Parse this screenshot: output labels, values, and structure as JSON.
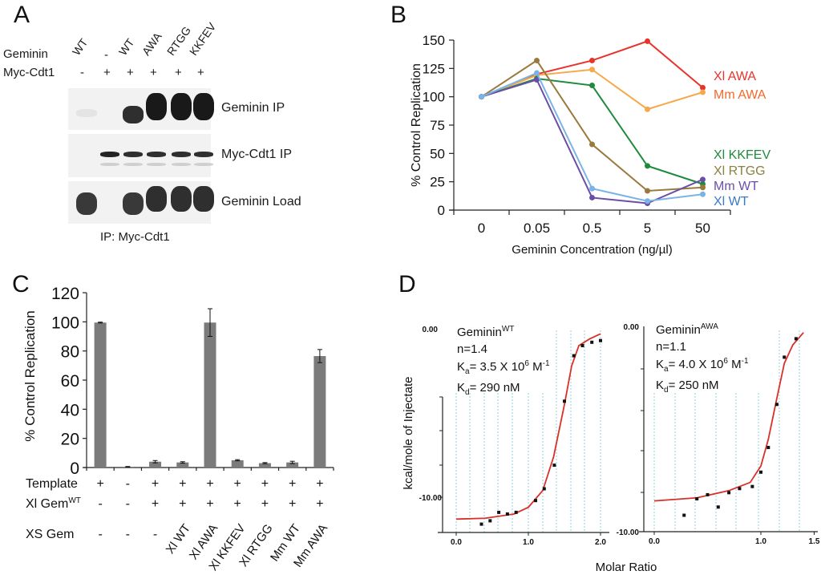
{
  "panels": {
    "A": {
      "letter": "A",
      "row_labels": {
        "geminin": "Geminin",
        "myc": "Myc-Cdt1"
      },
      "lanes": [
        {
          "geminin": "WT",
          "myc": "-"
        },
        {
          "geminin": "-",
          "myc": "+"
        },
        {
          "geminin": "WT",
          "myc": "+"
        },
        {
          "geminin": "AWA",
          "myc": "+"
        },
        {
          "geminin": "RTGG",
          "myc": "+"
        },
        {
          "geminin": "KKFEV",
          "myc": "+"
        }
      ],
      "blots": [
        {
          "label": "Geminin IP",
          "band_intensity": [
            0.06,
            0.0,
            0.9,
            1.0,
            1.0,
            1.0
          ]
        },
        {
          "label": "Myc-Cdt1 IP",
          "band_intensity": [
            0.0,
            0.95,
            0.9,
            0.9,
            0.9,
            0.9
          ]
        },
        {
          "label": "Geminin Load",
          "band_intensity": [
            0.85,
            0.0,
            0.85,
            0.9,
            0.9,
            0.9
          ]
        }
      ],
      "footer": "IP:  Myc-Cdt1"
    },
    "B": {
      "letter": "B"
    },
    "C": {
      "letter": "C"
    },
    "D": {
      "letter": "D"
    }
  },
  "chart_data": [
    {
      "id": "B",
      "type": "line",
      "title": "",
      "xlabel": "Geminin Concentration (ng/µl)",
      "ylabel": "% Control Replication",
      "categories": [
        "0",
        "0.05",
        "0.5",
        "5",
        "50"
      ],
      "yticks": [
        0,
        25,
        50,
        75,
        100,
        125,
        150
      ],
      "ylim": [
        0,
        150
      ],
      "grid": false,
      "legend_position": "right (inline labels)",
      "series": [
        {
          "name": "Xl AWA",
          "color": "#e8332a",
          "values": [
            100,
            120,
            132,
            149,
            108
          ]
        },
        {
          "name": "Mm AWA",
          "color": "#f7a84a",
          "label_color": "#f26a2a",
          "values": [
            100,
            119,
            124,
            89,
            104
          ]
        },
        {
          "name": "Xl KKFEV",
          "color": "#1f8a3c",
          "values": [
            100,
            116,
            110,
            39,
            23
          ]
        },
        {
          "name": "Xl RTGG",
          "color": "#9a7a3c",
          "label_color": "#8a8040",
          "values": [
            100,
            132,
            58,
            17,
            20
          ]
        },
        {
          "name": "Mm WT",
          "color": "#6a4fa8",
          "values": [
            100,
            115,
            11,
            6,
            27
          ]
        },
        {
          "name": "Xl WT",
          "color": "#7ab4e6",
          "label_color": "#3a78c8",
          "values": [
            100,
            121,
            19,
            8,
            14
          ]
        }
      ]
    },
    {
      "id": "C",
      "type": "bar",
      "title": "",
      "ylabel": "% Control Replication",
      "yticks": [
        0,
        20,
        40,
        60,
        80,
        100,
        120
      ],
      "ylim": [
        0,
        120
      ],
      "bar_color": "#7b7b7b",
      "values": [
        99.5,
        0.5,
        4,
        3.5,
        99.5,
        5,
        3,
        3.5,
        76.5
      ],
      "errors": [
        0.3,
        0.2,
        0.8,
        0.5,
        9.5,
        0.4,
        0.4,
        0.8,
        4.5
      ],
      "condition_rows": [
        {
          "label": "Template",
          "sup": "",
          "values": [
            "+",
            "-",
            "+",
            "+",
            "+",
            "+",
            "+",
            "+",
            "+"
          ]
        },
        {
          "label": "Xl Gem",
          "sup": "WT",
          "values": [
            "-",
            "-",
            "+",
            "+",
            "+",
            "+",
            "+",
            "+",
            "+"
          ]
        },
        {
          "label": "XS Gem",
          "sup": "",
          "values": [
            "-",
            "-",
            "-",
            "Xl WT",
            "Xl AWA",
            "Xl KKFEV",
            "Xl RTGG",
            "Mm WT",
            "Mm AWA"
          ]
        }
      ]
    },
    {
      "id": "D-left",
      "type": "scatter",
      "xlabel": "Molar Ratio",
      "ylabel": "kcal/mole of Injectate",
      "xticks": [
        "0.0",
        "1.0",
        "2.0"
      ],
      "xlim": [
        0,
        2.1
      ],
      "yticks": [
        "0.00",
        "-10.00"
      ],
      "ylim": [
        -12,
        0
      ],
      "fit_color": "#d9302a",
      "annotation": {
        "name": "Geminin",
        "sup": "WT",
        "n": "n=1.4",
        "ka": "3.5 X 10",
        "ka_exp": "6",
        "ka_unit": " M",
        "ka_unit_exp": "-1",
        "kd": "290 nM"
      },
      "points": [
        [
          0.35,
          -11.6
        ],
        [
          0.47,
          -11.4
        ],
        [
          0.59,
          -10.9
        ],
        [
          0.71,
          -11.0
        ],
        [
          0.83,
          -10.9
        ],
        [
          1.1,
          -10.2
        ],
        [
          1.22,
          -9.5
        ],
        [
          1.36,
          -8.1
        ],
        [
          1.5,
          -4.3
        ],
        [
          1.63,
          -1.6
        ],
        [
          1.75,
          -1.0
        ],
        [
          1.88,
          -0.8
        ],
        [
          2.0,
          -0.7
        ]
      ],
      "fit": [
        [
          0,
          -11.3
        ],
        [
          0.4,
          -11.25
        ],
        [
          0.8,
          -11.0
        ],
        [
          1.0,
          -10.6
        ],
        [
          1.2,
          -9.6
        ],
        [
          1.35,
          -7.6
        ],
        [
          1.5,
          -4.5
        ],
        [
          1.6,
          -2.2
        ],
        [
          1.7,
          -1.0
        ],
        [
          1.85,
          -0.6
        ],
        [
          2.0,
          -0.3
        ]
      ]
    },
    {
      "id": "D-right",
      "type": "scatter",
      "xlabel": "Molar Ratio",
      "ylabel": "",
      "xticks": [
        "0.0",
        "1.0",
        "1.5"
      ],
      "xlim": [
        -0.1,
        1.5
      ],
      "yticks": [
        "0.00",
        "-10.00"
      ],
      "ylim": [
        -10,
        0
      ],
      "fit_color": "#d9302a",
      "annotation": {
        "name": "Geminin",
        "sup": "AWA",
        "n": "n=1.1",
        "ka": "4.0 X 10",
        "ka_exp": "6",
        "ka_unit": " M",
        "ka_unit_exp": "-1",
        "kd": "250 nM"
      },
      "points": [
        [
          0.28,
          -9.2
        ],
        [
          0.4,
          -8.4
        ],
        [
          0.5,
          -8.2
        ],
        [
          0.6,
          -8.8
        ],
        [
          0.7,
          -8.1
        ],
        [
          0.8,
          -7.9
        ],
        [
          0.92,
          -7.8
        ],
        [
          1.0,
          -7.1
        ],
        [
          1.07,
          -5.9
        ],
        [
          1.15,
          -3.8
        ],
        [
          1.22,
          -1.5
        ],
        [
          1.33,
          -0.6
        ]
      ],
      "fit": [
        [
          0.0,
          -8.5
        ],
        [
          0.4,
          -8.35
        ],
        [
          0.7,
          -8.0
        ],
        [
          0.9,
          -7.6
        ],
        [
          1.0,
          -6.8
        ],
        [
          1.07,
          -5.5
        ],
        [
          1.15,
          -3.5
        ],
        [
          1.22,
          -1.8
        ],
        [
          1.3,
          -0.9
        ],
        [
          1.4,
          -0.3
        ]
      ]
    }
  ]
}
